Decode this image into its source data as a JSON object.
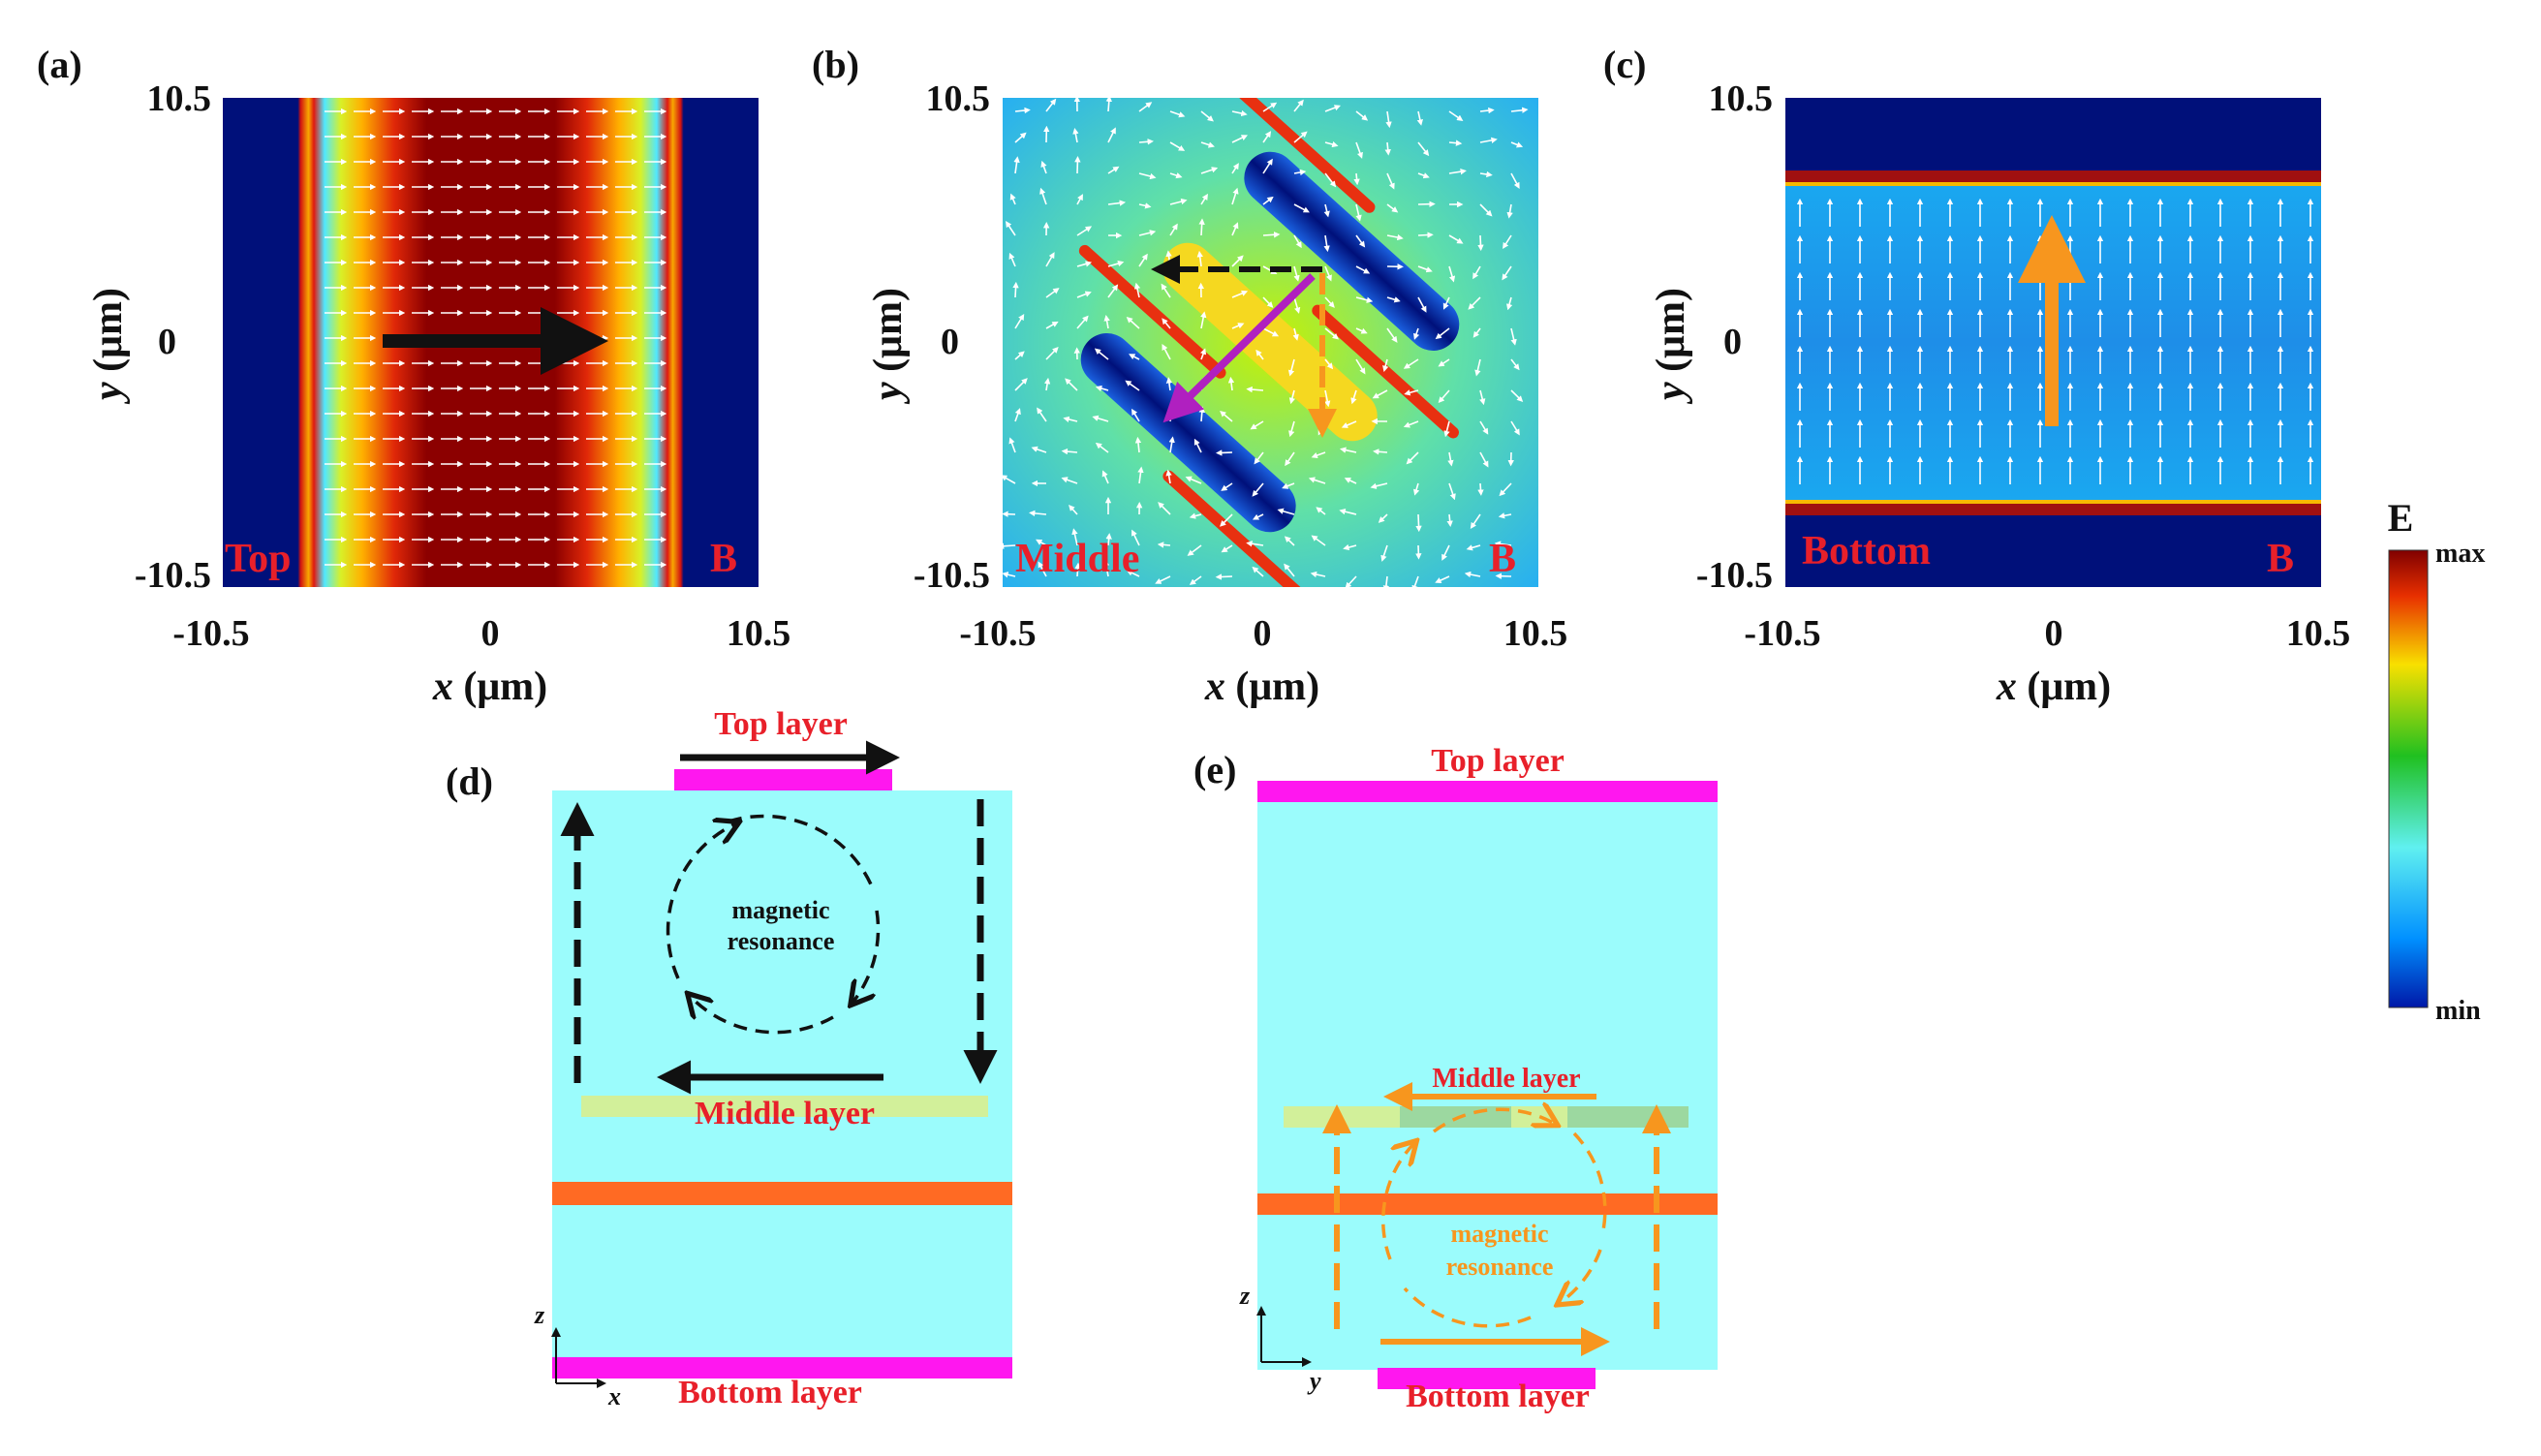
{
  "panels": {
    "a": {
      "label": "(a)",
      "corner_left": "Top",
      "corner_right": "B"
    },
    "b": {
      "label": "(b)",
      "corner_left": "Middle",
      "corner_right": "B"
    },
    "c": {
      "label": "(c)",
      "corner_left": "Bottom",
      "corner_right": "B"
    },
    "d": {
      "label": "(d)"
    },
    "e": {
      "label": "(e)"
    }
  },
  "axes": {
    "y_top": "10.5",
    "y_mid": "0",
    "y_bot": "-10.5",
    "x_left": "-10.5",
    "x_mid": "0",
    "x_right": "10.5",
    "x_var": "x",
    "y_var": "y",
    "unit": " (μm)"
  },
  "colorbar": {
    "title": "E",
    "max": "max",
    "min": "min"
  },
  "diagram_d": {
    "top": "Top layer",
    "middle": "Middle layer",
    "bottom": "Bottom layer",
    "mag1": "magnetic",
    "mag2": "resonance",
    "axis_z": "z",
    "axis_h": "x"
  },
  "diagram_e": {
    "top": "Top layer",
    "middle": "Middle layer",
    "bottom": "Bottom layer",
    "mag1": "magnetic",
    "mag2": "resonance",
    "axis_z": "z",
    "axis_h": "y"
  },
  "colors": {
    "field_bg": "#00107a",
    "slab": "#9bfcfc",
    "magenta": "#ff17ef",
    "orange": "#ff6a23",
    "arrow_orange": "#f7961e",
    "label_red": "#e8202a",
    "middle_green": "#d2f09a"
  }
}
